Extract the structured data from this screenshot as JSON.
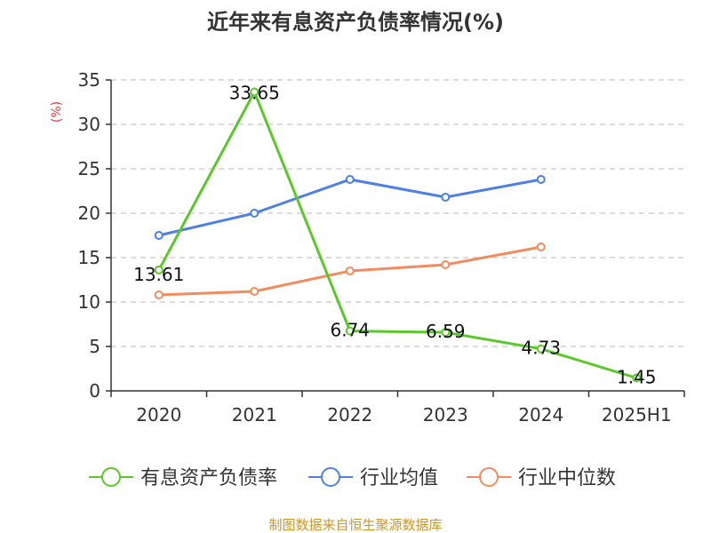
{
  "chart_data": {
    "type": "line",
    "title": "近年来有息资产负债率情况(%)",
    "ylabel": "(%)",
    "xlabel": "",
    "categories": [
      "2020",
      "2021",
      "2022",
      "2023",
      "2024",
      "2025H1"
    ],
    "ylim": [
      0,
      35
    ],
    "yticks": [
      0,
      5,
      10,
      15,
      20,
      25,
      30,
      35
    ],
    "grid": "horizontal dashed",
    "legend_position": "bottom",
    "series": [
      {
        "name": "有息资产负债率",
        "color": "#5cc72a",
        "values": [
          13.61,
          33.65,
          6.74,
          6.59,
          4.73,
          1.45
        ],
        "labels": [
          "13.61",
          "33.65",
          "6.74",
          "6.59",
          "4.73",
          "1.45"
        ]
      },
      {
        "name": "行业均值",
        "color": "#4f7fe0",
        "values": [
          17.5,
          20.0,
          23.8,
          21.8,
          23.8,
          null
        ]
      },
      {
        "name": "行业中位数",
        "color": "#f28c5e",
        "values": [
          10.8,
          11.2,
          13.5,
          14.2,
          16.2,
          null
        ]
      }
    ]
  },
  "source": "制图数据来自恒生聚源数据库"
}
